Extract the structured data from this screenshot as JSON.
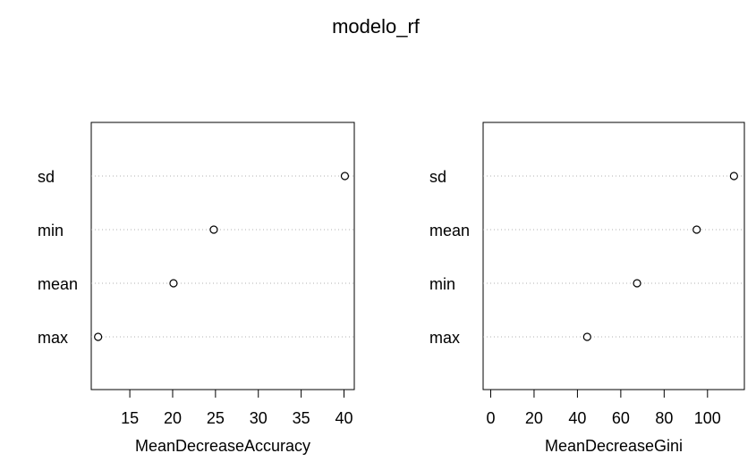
{
  "title": "modelo_rf",
  "chart_data": [
    {
      "type": "scatter",
      "style": "dotchart",
      "title": "",
      "xlabel": "MeanDecreaseAccuracy",
      "ylabel": "",
      "categories": [
        "max",
        "mean",
        "min",
        "sd"
      ],
      "values": [
        11.3,
        20.1,
        24.8,
        40.1
      ],
      "xlim": [
        10.5,
        41.2
      ],
      "xticks": [
        15,
        20,
        25,
        30,
        35,
        40
      ],
      "grid": "horizontal dotted"
    },
    {
      "type": "scatter",
      "style": "dotchart",
      "title": "",
      "xlabel": "MeanDecreaseGini",
      "ylabel": "",
      "categories": [
        "max",
        "min",
        "mean",
        "sd"
      ],
      "values": [
        44.5,
        67.5,
        95.0,
        112.2
      ],
      "xlim": [
        -3.5,
        117
      ],
      "xticks": [
        0,
        20,
        40,
        60,
        80,
        100
      ],
      "grid": "horizontal dotted"
    }
  ]
}
